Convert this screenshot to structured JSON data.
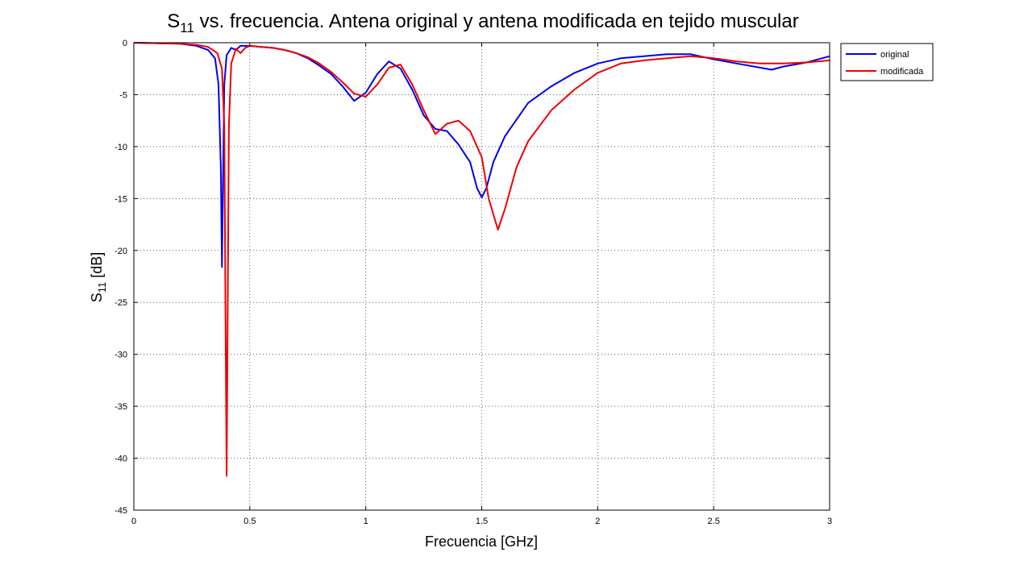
{
  "chart_data": {
    "type": "line",
    "title": {
      "base": "S",
      "sub": "11",
      "rest": " vs. frecuencia. Antena original y antena modificada en tejido muscular"
    },
    "xlabel": "Frecuencia [GHz]",
    "ylabel": {
      "base": "S",
      "sub": "11",
      "rest": " [dB]"
    },
    "xlim": [
      0,
      3
    ],
    "ylim": [
      -45,
      0
    ],
    "xticks": [
      {
        "v": 0,
        "label": "0"
      },
      {
        "v": 0.5,
        "label": "0.5"
      },
      {
        "v": 1,
        "label": "1"
      },
      {
        "v": 1.5,
        "label": "1.5"
      },
      {
        "v": 2,
        "label": "2"
      },
      {
        "v": 2.5,
        "label": "2.5"
      },
      {
        "v": 3,
        "label": "3"
      }
    ],
    "yticks": [
      {
        "v": 0,
        "label": "0"
      },
      {
        "v": -5,
        "label": "-5"
      },
      {
        "v": -10,
        "label": "-10"
      },
      {
        "v": -15,
        "label": "-15"
      },
      {
        "v": -20,
        "label": "-20"
      },
      {
        "v": -25,
        "label": "-25"
      },
      {
        "v": -30,
        "label": "-30"
      },
      {
        "v": -35,
        "label": "-35"
      },
      {
        "v": -40,
        "label": "-40"
      },
      {
        "v": -45,
        "label": "-45"
      }
    ],
    "grid": true,
    "legend_position": "outside-top-right",
    "series": [
      {
        "name": "original",
        "color": "#0000ee",
        "points": [
          [
            0,
            0
          ],
          [
            0.1,
            -0.05
          ],
          [
            0.2,
            -0.1
          ],
          [
            0.27,
            -0.3
          ],
          [
            0.32,
            -0.7
          ],
          [
            0.35,
            -1.5
          ],
          [
            0.365,
            -4
          ],
          [
            0.375,
            -12
          ],
          [
            0.38,
            -21.6
          ],
          [
            0.385,
            -12
          ],
          [
            0.39,
            -4
          ],
          [
            0.4,
            -1.2
          ],
          [
            0.42,
            -0.5
          ],
          [
            0.44,
            -0.7
          ],
          [
            0.46,
            -0.3
          ],
          [
            0.5,
            -0.3
          ],
          [
            0.55,
            -0.4
          ],
          [
            0.6,
            -0.5
          ],
          [
            0.65,
            -0.7
          ],
          [
            0.7,
            -1.0
          ],
          [
            0.75,
            -1.5
          ],
          [
            0.8,
            -2.2
          ],
          [
            0.85,
            -3.0
          ],
          [
            0.9,
            -4.2
          ],
          [
            0.95,
            -5.6
          ],
          [
            1.0,
            -4.8
          ],
          [
            1.05,
            -3.0
          ],
          [
            1.1,
            -1.8
          ],
          [
            1.15,
            -2.5
          ],
          [
            1.2,
            -4.5
          ],
          [
            1.25,
            -7.0
          ],
          [
            1.3,
            -8.3
          ],
          [
            1.35,
            -8.5
          ],
          [
            1.4,
            -9.8
          ],
          [
            1.45,
            -11.5
          ],
          [
            1.48,
            -14.0
          ],
          [
            1.5,
            -14.9
          ],
          [
            1.52,
            -14.0
          ],
          [
            1.55,
            -11.5
          ],
          [
            1.6,
            -9.0
          ],
          [
            1.7,
            -5.8
          ],
          [
            1.8,
            -4.2
          ],
          [
            1.9,
            -2.9
          ],
          [
            2.0,
            -2.0
          ],
          [
            2.1,
            -1.5
          ],
          [
            2.2,
            -1.3
          ],
          [
            2.3,
            -1.1
          ],
          [
            2.4,
            -1.1
          ],
          [
            2.5,
            -1.6
          ],
          [
            2.6,
            -2.0
          ],
          [
            2.7,
            -2.4
          ],
          [
            2.75,
            -2.6
          ],
          [
            2.8,
            -2.3
          ],
          [
            2.9,
            -1.9
          ],
          [
            3.0,
            -1.3
          ]
        ]
      },
      {
        "name": "modificada",
        "color": "#ee0000",
        "points": [
          [
            0,
            0
          ],
          [
            0.1,
            -0.05
          ],
          [
            0.2,
            -0.1
          ],
          [
            0.27,
            -0.2
          ],
          [
            0.32,
            -0.4
          ],
          [
            0.36,
            -1.0
          ],
          [
            0.38,
            -2.5
          ],
          [
            0.39,
            -8
          ],
          [
            0.395,
            -25
          ],
          [
            0.4,
            -41.7
          ],
          [
            0.405,
            -25
          ],
          [
            0.41,
            -8
          ],
          [
            0.42,
            -2
          ],
          [
            0.44,
            -0.6
          ],
          [
            0.46,
            -1.0
          ],
          [
            0.48,
            -0.5
          ],
          [
            0.5,
            -0.3
          ],
          [
            0.55,
            -0.4
          ],
          [
            0.6,
            -0.5
          ],
          [
            0.65,
            -0.7
          ],
          [
            0.7,
            -1.0
          ],
          [
            0.75,
            -1.4
          ],
          [
            0.8,
            -2.0
          ],
          [
            0.85,
            -2.8
          ],
          [
            0.9,
            -3.8
          ],
          [
            0.95,
            -4.9
          ],
          [
            1.0,
            -5.2
          ],
          [
            1.05,
            -4.0
          ],
          [
            1.1,
            -2.4
          ],
          [
            1.15,
            -2.1
          ],
          [
            1.2,
            -4.0
          ],
          [
            1.25,
            -6.5
          ],
          [
            1.3,
            -8.8
          ],
          [
            1.35,
            -7.8
          ],
          [
            1.4,
            -7.5
          ],
          [
            1.45,
            -8.5
          ],
          [
            1.5,
            -11.0
          ],
          [
            1.53,
            -15.0
          ],
          [
            1.57,
            -18.0
          ],
          [
            1.6,
            -16.0
          ],
          [
            1.65,
            -12.0
          ],
          [
            1.7,
            -9.5
          ],
          [
            1.8,
            -6.5
          ],
          [
            1.9,
            -4.5
          ],
          [
            2.0,
            -2.9
          ],
          [
            2.1,
            -2.0
          ],
          [
            2.2,
            -1.7
          ],
          [
            2.3,
            -1.5
          ],
          [
            2.4,
            -1.3
          ],
          [
            2.5,
            -1.5
          ],
          [
            2.6,
            -1.8
          ],
          [
            2.7,
            -2.0
          ],
          [
            2.8,
            -2.0
          ],
          [
            2.9,
            -1.9
          ],
          [
            3.0,
            -1.7
          ]
        ]
      }
    ]
  }
}
